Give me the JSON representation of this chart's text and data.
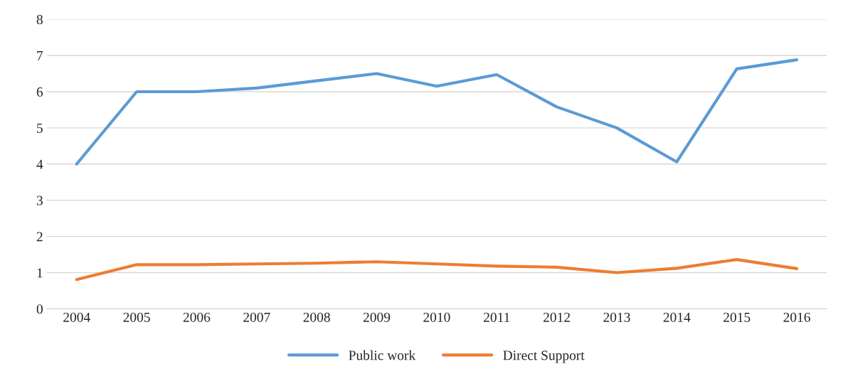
{
  "chart_data": {
    "type": "line",
    "categories": [
      "2004",
      "2005",
      "2006",
      "2007",
      "2008",
      "2009",
      "2010",
      "2011",
      "2012",
      "2013",
      "2014",
      "2015",
      "2016"
    ],
    "series": [
      {
        "name": "Public work",
        "color": "#5b9bd5",
        "values": [
          4.0,
          6.0,
          6.0,
          6.1,
          6.3,
          6.5,
          6.15,
          6.47,
          5.58,
          5.0,
          4.06,
          6.63,
          6.88
        ]
      },
      {
        "name": "Direct Support",
        "color": "#ed7d31",
        "values": [
          0.81,
          1.22,
          1.22,
          1.24,
          1.26,
          1.3,
          1.24,
          1.18,
          1.15,
          1.0,
          1.12,
          1.36,
          1.11
        ]
      }
    ],
    "ylim": [
      0,
      8
    ],
    "yticks": [
      0,
      1,
      2,
      3,
      4,
      5,
      6,
      7,
      8
    ],
    "grid": "y",
    "legend": "bottom",
    "marker": "none",
    "line_style": "solid"
  }
}
